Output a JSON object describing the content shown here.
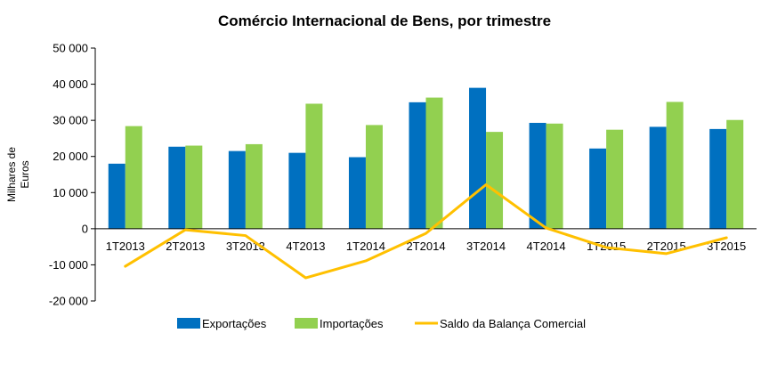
{
  "chart_data": {
    "type": "bar",
    "title": "Comércio Internacional de Bens, por trimestre",
    "ylabel": "Milhares de Euros",
    "xlabel": "",
    "categories": [
      "1T2013",
      "2T2013",
      "3T2013",
      "4T2013",
      "1T2014",
      "2T2014",
      "3T2014",
      "4T2014",
      "1T2015",
      "2T2015",
      "3T2015"
    ],
    "series": [
      {
        "name": "Exportações",
        "type": "bar",
        "color": "#0070C0",
        "values": [
          18000,
          22700,
          21500,
          21000,
          19800,
          35000,
          39000,
          29300,
          22200,
          28200,
          27600
        ]
      },
      {
        "name": "Importações",
        "type": "bar",
        "color": "#92D050",
        "values": [
          28400,
          23000,
          23400,
          34600,
          28700,
          36300,
          26800,
          29100,
          27400,
          35100,
          30100
        ]
      },
      {
        "name": "Saldo da Balança Comercial",
        "type": "line",
        "color": "#FFC000",
        "values": [
          -10400,
          -300,
          -1900,
          -13600,
          -8900,
          -1300,
          12200,
          200,
          -5200,
          -6900,
          -2500
        ]
      }
    ],
    "ylim": [
      -20000,
      50000
    ],
    "yticks": [
      -20000,
      -10000,
      0,
      10000,
      20000,
      30000,
      40000,
      50000
    ],
    "ytick_labels": [
      "-20 000",
      "-10 000",
      "0",
      "10 000",
      "20 000",
      "30 000",
      "40 000",
      "50 000"
    ],
    "grid": false,
    "legend_position": "bottom"
  }
}
